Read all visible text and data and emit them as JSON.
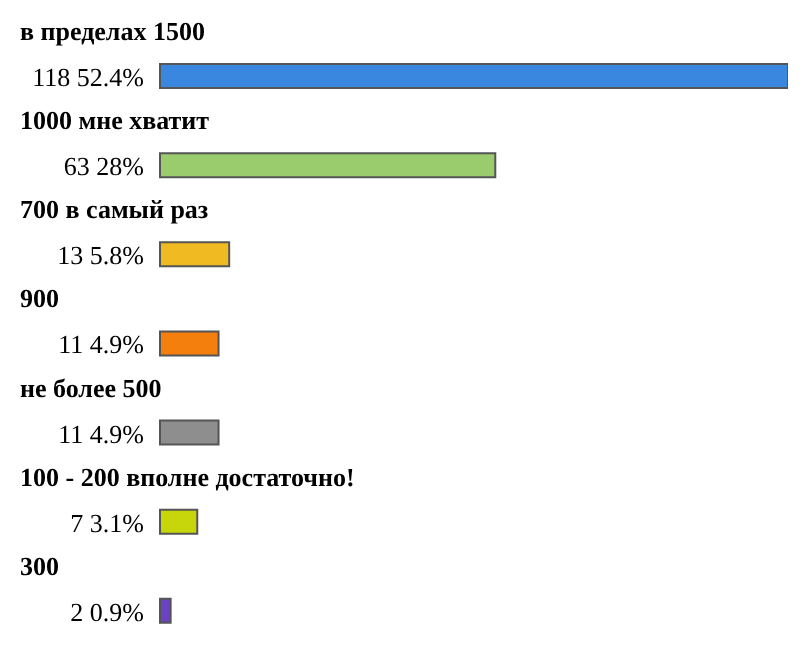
{
  "chart_data": {
    "type": "bar",
    "orientation": "horizontal",
    "categories": [
      "в пределах 1500",
      "1000 мне хватит",
      "700 в самый раз",
      "900",
      "не более 500",
      "100 - 200 вполне достаточно!",
      "300"
    ],
    "values": [
      118,
      63,
      13,
      11,
      11,
      7,
      2
    ],
    "colors": [
      "#3a87e0",
      "#9acb6c",
      "#f0ba22",
      "#f57f0c",
      "#8e8e8e",
      "#c6d60a",
      "#6a42c2"
    ],
    "value_labels": [
      "118 52.4%",
      "63 28%",
      "13 5.8%",
      "11 4.9%",
      "11 4.9%",
      "7 3.1%",
      "2 0.9%"
    ]
  }
}
